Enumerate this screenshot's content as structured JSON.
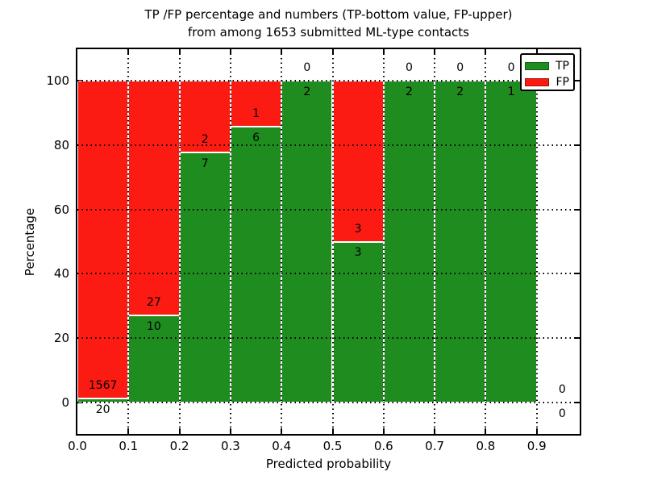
{
  "title": {
    "line1": "TP /FP percentage and numbers (TP-bottom value, FP-upper)",
    "line2": "from among 1653 submitted ML-type contacts"
  },
  "axes": {
    "xlabel": "Predicted probability",
    "ylabel": "Percentage",
    "x_ticks": [
      "0.0",
      "0.1",
      "0.2",
      "0.3",
      "0.4",
      "0.5",
      "0.6",
      "0.7",
      "0.8",
      "0.9"
    ],
    "y_ticks": [
      "0",
      "20",
      "40",
      "60",
      "80",
      "100"
    ]
  },
  "legend": {
    "position": "upper right",
    "items": [
      {
        "label": "TP",
        "color": "#1f8c1f"
      },
      {
        "label": "FP",
        "color": "#fb1b12"
      }
    ]
  },
  "colors": {
    "tp_green": "#1f8c1f",
    "fp_red": "#fb1b12",
    "axis_black": "#000000",
    "background": "#ffffff"
  },
  "chart_data": {
    "type": "bar",
    "stacked": true,
    "normalized_to_percent": true,
    "title": "TP /FP percentage and numbers (TP-bottom value, FP-upper) from among 1653 submitted ML-type contacts",
    "total_submitted_contacts": 1653,
    "xlabel": "Predicted probability",
    "ylabel": "Percentage",
    "bin_width": 0.1,
    "bin_starts": [
      0.0,
      0.1,
      0.2,
      0.3,
      0.4,
      0.5,
      0.6,
      0.7,
      0.8,
      0.9
    ],
    "categories": [
      "0.0-0.1",
      "0.1-0.2",
      "0.2-0.3",
      "0.3-0.4",
      "0.4-0.5",
      "0.5-0.6",
      "0.6-0.7",
      "0.7-0.8",
      "0.8-0.9",
      "0.9-1.0"
    ],
    "series": [
      {
        "name": "TP",
        "color": "#1f8c1f",
        "values": [
          20,
          10,
          7,
          6,
          2,
          3,
          2,
          2,
          1,
          0
        ]
      },
      {
        "name": "FP",
        "color": "#fb1b12",
        "values": [
          1567,
          27,
          2,
          1,
          0,
          3,
          0,
          0,
          0,
          0
        ]
      }
    ],
    "tp_percent_of_bin": [
      1.26,
      27.03,
      77.78,
      85.71,
      100,
      50,
      100,
      100,
      100,
      null
    ],
    "xlim": [
      0.0,
      0.984
    ],
    "ylim": [
      -9.8,
      109.8
    ],
    "y_tick_values": [
      0,
      20,
      40,
      60,
      80,
      100
    ],
    "x_tick_values": [
      0.0,
      0.1,
      0.2,
      0.3,
      0.4,
      0.5,
      0.6,
      0.7,
      0.8,
      0.9
    ],
    "grid": true,
    "grid_style": "dotted",
    "legend_position": "upper right"
  }
}
